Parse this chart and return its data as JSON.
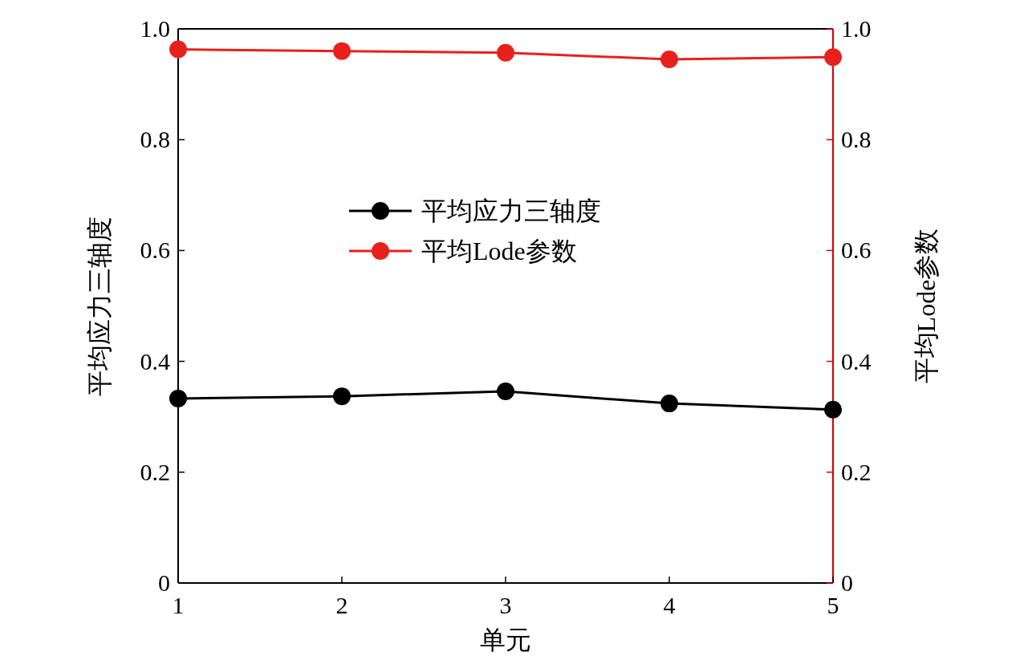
{
  "chart_data": {
    "type": "line",
    "xlabel": "单元",
    "ylabel": "平均应力三轴度",
    "y2label": "平均Lode参数",
    "x": [
      1,
      2,
      3,
      4,
      5
    ],
    "xlim": [
      1,
      5
    ],
    "xticks": [
      1,
      2,
      3,
      4,
      5
    ],
    "ylim": [
      0,
      1
    ],
    "yticks": [
      0,
      0.2,
      0.4,
      0.6,
      0.8,
      {
        "value": 1,
        "label": "1.0"
      }
    ],
    "y2lim": [
      0,
      1
    ],
    "y2ticks": [
      0,
      0.2,
      0.4,
      0.6,
      0.8,
      {
        "value": 1,
        "label": "1.0"
      }
    ],
    "legend": "top",
    "marker": "circle",
    "line_style": "solid",
    "series": [
      {
        "name": "平均应力三轴度",
        "color": "#000000",
        "values": [
          0.333,
          0.337,
          0.346,
          0.324,
          0.313
        ]
      },
      {
        "name": "平均Lode参数",
        "color": "#e8201c",
        "axis": "y2",
        "values": [
          0.963,
          0.96,
          0.957,
          0.945,
          0.949
        ]
      }
    ]
  }
}
